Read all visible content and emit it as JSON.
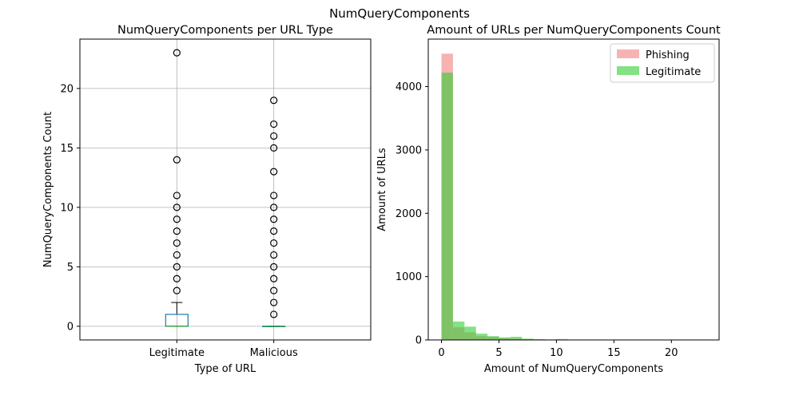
{
  "figure": {
    "suptitle": "NumQueryComponents"
  },
  "colors": {
    "box": "#1f77b4",
    "median": "#2ca02c",
    "grid": "#b0b0b0",
    "phishing": "#f08080",
    "legitimate": "#32cd32"
  },
  "chart_data": [
    {
      "type": "box",
      "title": "NumQueryComponents per URL Type",
      "xlabel": "Type of URL",
      "ylabel": "NumQueryComponents Count",
      "categories": [
        "Legitimate",
        "Malicious"
      ],
      "ylim": [
        -1.15,
        24.15
      ],
      "yticks": [
        0,
        5,
        10,
        15,
        20
      ],
      "grid": true,
      "boxes": [
        {
          "name": "Legitimate",
          "q1": 0,
          "median": 0,
          "q3": 1,
          "whislo": 0,
          "whishi": 2,
          "fliers": [
            3,
            4,
            5,
            6,
            7,
            8,
            9,
            10,
            11,
            14,
            23
          ]
        },
        {
          "name": "Malicious",
          "q1": 0,
          "median": 0,
          "q3": 0,
          "whislo": 0,
          "whishi": 0,
          "fliers": [
            1,
            2,
            3,
            4,
            5,
            6,
            7,
            8,
            9,
            10,
            11,
            13,
            15,
            16,
            17,
            19
          ]
        }
      ]
    },
    {
      "type": "histogram",
      "title": "Amount of URLs per NumQueryComponents Count",
      "xlabel": "Amount of NumQueryComponents",
      "ylabel": "Amount of URLs",
      "xlim": [
        -1.15,
        24.15
      ],
      "ylim": [
        0,
        4750
      ],
      "xticks": [
        0,
        5,
        10,
        15,
        20
      ],
      "yticks": [
        0,
        1000,
        2000,
        3000,
        4000
      ],
      "legend_position": "top-right",
      "bin_width": 1.0,
      "series": [
        {
          "name": "Phishing",
          "bin_starts": [
            0,
            1,
            2,
            3,
            4,
            5,
            6,
            7,
            8,
            9,
            10,
            11,
            12,
            13,
            14,
            15,
            16,
            17,
            18
          ],
          "counts": [
            4520,
            200,
            120,
            60,
            50,
            30,
            20,
            15,
            10,
            8,
            15,
            4,
            2,
            3,
            1,
            2,
            2,
            2,
            1
          ]
        },
        {
          "name": "Legitimate",
          "bin_starts": [
            0,
            1,
            2,
            3,
            4,
            5,
            6,
            7,
            8,
            9,
            10,
            11,
            12,
            13,
            14,
            15,
            16,
            17,
            18,
            19,
            20,
            21,
            22
          ],
          "counts": [
            4220,
            290,
            210,
            100,
            60,
            40,
            50,
            20,
            10,
            5,
            5,
            3,
            0,
            0,
            1,
            0,
            0,
            0,
            0,
            0,
            0,
            0,
            1
          ]
        }
      ]
    }
  ]
}
